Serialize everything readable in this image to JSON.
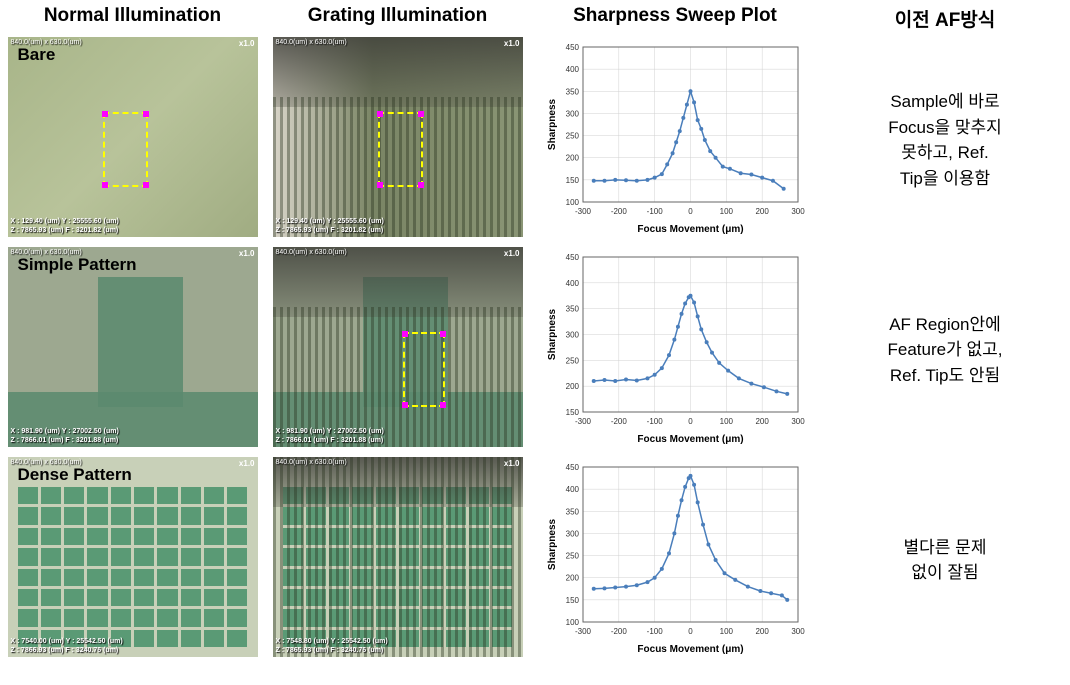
{
  "headers": {
    "col1": "Normal Illumination",
    "col2": "Grating Illumination",
    "col3": "Sharpness Sweep Plot",
    "col4": "이전 AF방식"
  },
  "rows": {
    "r1": {
      "label": "Bare",
      "desc": "Sample에 바로\nFocus을 맞추지\n못하고, Ref.\nTip을 이용함"
    },
    "r2": {
      "label": "Simple Pattern",
      "desc": "AF Region안에\nFeature가 없고,\nRef. Tip도 안됨"
    },
    "r3": {
      "label": "Dense Pattern",
      "desc": "별다른 문제\n없이 잘됨"
    }
  },
  "micro": {
    "info": "840.0(um) x 630.0(um)",
    "zoom": "x1.0",
    "bare_coord": "X : 129.40 (um)  Y : 25555.60 (um)\nZ : 7865.93 (um)  F : 3201.82 (um)",
    "bare_coord2": "X : 129.40 (um)  Y : 25555.60 (um)\nZ : 7865.93 (um)  F : 3201.82 (um)",
    "simple_coord": "X : 981.90 (um)  Y : 27002.50 (um)\nZ : 7866.01 (um)  F : 3201.88 (um)",
    "simple_coord2": "X : 981.90 (um)  Y : 27002.50 (um)\nZ : 7866.01 (um)  F : 3201.88 (um)",
    "dense_coord": "X : 7540.00 (um)  Y : 25542.50 (um)\nZ : 7866.93 (um)  F : 3240.76 (um)",
    "dense_coord2": "X : 7548.80 (um)  Y : 25542.50 (um)\nZ : 7865.93 (um)  F : 3240.76 (um)"
  },
  "chart": {
    "xlabel": "Focus Movement (μm)",
    "ylabel": "Sharpness",
    "xlim": [
      -300,
      300
    ],
    "xtick_step": 100,
    "c1": {
      "ylim": [
        100,
        450
      ],
      "ytick_step": 50,
      "x": [
        -270,
        -240,
        -210,
        -180,
        -150,
        -120,
        -100,
        -80,
        -65,
        -50,
        -40,
        -30,
        -20,
        -10,
        0,
        10,
        20,
        30,
        40,
        55,
        70,
        90,
        110,
        140,
        170,
        200,
        230,
        260
      ],
      "y": [
        148,
        148,
        150,
        149,
        148,
        150,
        155,
        163,
        185,
        210,
        235,
        260,
        290,
        320,
        350,
        325,
        285,
        265,
        240,
        215,
        200,
        180,
        175,
        165,
        162,
        155,
        148,
        130
      ]
    },
    "c2": {
      "ylim": [
        150,
        450
      ],
      "ytick_step": 50,
      "x": [
        -270,
        -240,
        -210,
        -180,
        -150,
        -120,
        -100,
        -80,
        -60,
        -45,
        -35,
        -25,
        -15,
        -5,
        0,
        10,
        20,
        30,
        45,
        60,
        80,
        105,
        135,
        170,
        205,
        240,
        270
      ],
      "y": [
        210,
        212,
        210,
        213,
        211,
        215,
        222,
        235,
        260,
        290,
        315,
        340,
        360,
        372,
        375,
        362,
        335,
        310,
        285,
        265,
        245,
        230,
        215,
        205,
        198,
        190,
        185
      ]
    },
    "c3": {
      "ylim": [
        100,
        450
      ],
      "ytick_step": 50,
      "x": [
        -270,
        -240,
        -210,
        -180,
        -150,
        -120,
        -100,
        -80,
        -60,
        -45,
        -35,
        -25,
        -15,
        -5,
        0,
        10,
        20,
        35,
        50,
        70,
        95,
        125,
        160,
        195,
        225,
        255,
        270
      ],
      "y": [
        175,
        176,
        178,
        180,
        183,
        190,
        200,
        220,
        255,
        300,
        340,
        375,
        405,
        425,
        430,
        410,
        370,
        320,
        275,
        240,
        210,
        195,
        180,
        170,
        165,
        160,
        150
      ]
    },
    "line_color": "#4a7ebb",
    "marker_color": "#4a7ebb",
    "grid_color": "#d0d0d0",
    "axis_color": "#666666",
    "label_fontsize": 10,
    "tick_fontsize": 8
  }
}
